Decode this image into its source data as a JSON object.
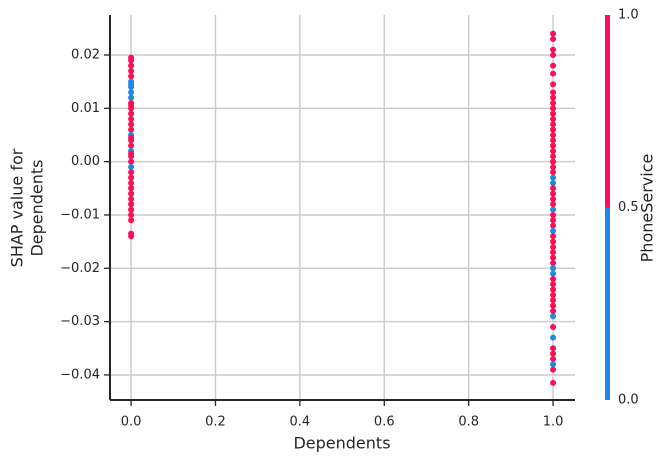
{
  "chart_data": {
    "type": "scatter",
    "xlabel": "Dependents",
    "ylabel": [
      "SHAP value for",
      "Dependents"
    ],
    "colorbar_label": "PhoneService",
    "x": [
      0,
      0,
      0,
      0,
      0,
      0,
      0,
      0,
      0,
      0,
      0,
      0,
      0,
      0,
      0,
      0,
      0,
      0,
      0,
      0,
      0,
      0,
      0,
      0,
      0,
      0,
      0,
      0,
      0,
      0,
      0,
      0,
      0,
      0,
      0,
      0,
      0,
      0,
      1,
      1,
      1,
      1,
      1,
      1,
      1,
      1,
      1,
      1,
      1,
      1,
      1,
      1,
      1,
      1,
      1,
      1,
      1,
      1,
      1,
      1,
      1,
      1,
      1,
      1,
      1,
      1,
      1,
      1,
      1,
      1,
      1,
      1,
      1,
      1,
      1,
      1,
      1,
      1,
      1,
      1,
      1,
      1,
      1,
      1,
      1,
      1,
      1,
      1,
      1,
      1,
      1,
      1,
      1,
      1,
      1,
      1
    ],
    "values": [
      0.0195,
      0.019,
      0.018,
      0.017,
      0.016,
      0.015,
      0.0145,
      0.014,
      0.013,
      0.012,
      0.011,
      0.0105,
      0.01,
      0.009,
      0.008,
      0.007,
      0.006,
      0.005,
      0.0045,
      0.004,
      0.003,
      0.002,
      0.0015,
      0.001,
      0.0,
      -0.001,
      -0.002,
      -0.003,
      -0.004,
      -0.005,
      -0.006,
      -0.007,
      -0.008,
      -0.009,
      -0.01,
      -0.011,
      -0.0135,
      -0.014,
      0.024,
      0.023,
      0.021,
      0.02,
      0.018,
      0.0165,
      0.0145,
      0.013,
      0.012,
      0.011,
      0.01,
      0.009,
      0.008,
      0.007,
      0.006,
      0.005,
      0.004,
      0.003,
      0.002,
      0.001,
      0.0,
      -0.001,
      -0.002,
      -0.003,
      -0.004,
      -0.005,
      -0.006,
      -0.007,
      -0.008,
      -0.009,
      -0.01,
      -0.011,
      -0.012,
      -0.013,
      -0.014,
      -0.015,
      -0.016,
      -0.017,
      -0.018,
      -0.019,
      -0.02,
      -0.021,
      -0.022,
      -0.023,
      -0.024,
      -0.025,
      -0.026,
      -0.027,
      -0.028,
      -0.029,
      -0.031,
      -0.033,
      -0.035,
      -0.036,
      -0.037,
      -0.038,
      -0.039,
      -0.0415
    ],
    "color_values": [
      1,
      1,
      1,
      1,
      1,
      0,
      0,
      0,
      0,
      0,
      1,
      1,
      1,
      1,
      1,
      1,
      1,
      0,
      1,
      1,
      1,
      0,
      1,
      1,
      1,
      0,
      1,
      1,
      1,
      1,
      1,
      1,
      1,
      1,
      1,
      1,
      1,
      1,
      1,
      1,
      1,
      1,
      1,
      1,
      1,
      1,
      1,
      1,
      1,
      1,
      1,
      1,
      1,
      1,
      1,
      1,
      1,
      1,
      1,
      1,
      1,
      0,
      0,
      1,
      1,
      1,
      1,
      0,
      1,
      1,
      1,
      0,
      1,
      1,
      1,
      1,
      1,
      1,
      0,
      0,
      1,
      1,
      1,
      1,
      1,
      1,
      1,
      0,
      1,
      0,
      1,
      1,
      1,
      0,
      1,
      1
    ],
    "cmap": [
      "#1e88e5",
      "#ff0d57"
    ],
    "clim": [
      0,
      1
    ],
    "cticks": [
      {
        "value": 0,
        "label": "0.0"
      },
      {
        "value": 0.5,
        "label": "0.5"
      },
      {
        "value": 1,
        "label": "1.0"
      }
    ],
    "xlim": [
      -0.05,
      1.052
    ],
    "ylim": [
      -0.0447,
      0.0275
    ],
    "xticks": [
      {
        "value": 0,
        "label": "0.0"
      },
      {
        "value": 0.2,
        "label": "0.2"
      },
      {
        "value": 0.4,
        "label": "0.4"
      },
      {
        "value": 0.6,
        "label": "0.6"
      },
      {
        "value": 0.8,
        "label": "0.8"
      },
      {
        "value": 1,
        "label": "1.0"
      }
    ],
    "yticks": [
      {
        "value": -0.04,
        "label": "−0.04"
      },
      {
        "value": -0.03,
        "label": "−0.03"
      },
      {
        "value": -0.02,
        "label": "−0.02"
      },
      {
        "value": -0.01,
        "label": "−0.01"
      },
      {
        "value": 0,
        "label": "0.00"
      },
      {
        "value": 0.01,
        "label": "0.01"
      },
      {
        "value": 0.02,
        "label": "0.02"
      }
    ],
    "grid": true
  }
}
